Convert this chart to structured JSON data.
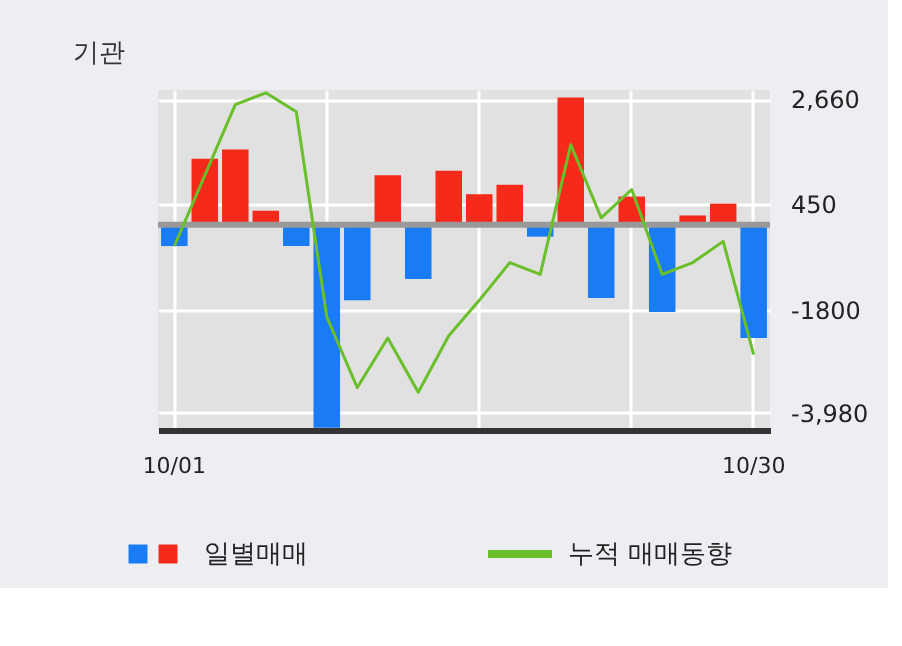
{
  "chart_data": {
    "type": "bar",
    "title": "기관",
    "categories": [
      "10/01",
      null,
      null,
      null,
      null,
      null,
      null,
      null,
      null,
      null,
      null,
      null,
      null,
      null,
      null,
      null,
      null,
      null,
      null,
      "10/30"
    ],
    "series": [
      {
        "name": "일별매매",
        "colors": [
          "#1a7cf5",
          "#f52a1a",
          "#f52a1a",
          "#f52a1a",
          "#1a7cf5",
          "#1a7cf5",
          "#1a7cf5",
          "#f52a1a",
          "#1a7cf5",
          "#f52a1a",
          "#f52a1a",
          "#f52a1a",
          "#1a7cf5",
          "#f52a1a",
          "#1a7cf5",
          "#f52a1a",
          "#1a7cf5",
          "#f52a1a",
          "#f52a1a",
          "#1a7cf5"
        ],
        "values": [
          -450,
          1400,
          1600,
          300,
          -450,
          -4300,
          -1600,
          1050,
          -1150,
          1150,
          650,
          850,
          -250,
          2700,
          -1550,
          600,
          -1850,
          200,
          450,
          -2400
        ]
      },
      {
        "name": "누적 매매동향",
        "type": "line",
        "color": "#6abf2a",
        "values": [
          -450,
          1050,
          2550,
          2800,
          2400,
          -1950,
          -3450,
          -2400,
          -3550,
          -2350,
          -1600,
          -800,
          -1050,
          1700,
          150,
          750,
          -1050,
          -800,
          -350,
          -2750
        ]
      }
    ],
    "ylim": [
      -4350,
      2860
    ],
    "yticks": [
      {
        "value": 2660,
        "label": "2,660"
      },
      450,
      -1800,
      {
        "value": -3980,
        "label": "-3,980"
      }
    ],
    "ref_lines": [
      {
        "axis": "y",
        "value": 0,
        "color": "#999999"
      }
    ],
    "grid": true,
    "legend": "bottom"
  }
}
